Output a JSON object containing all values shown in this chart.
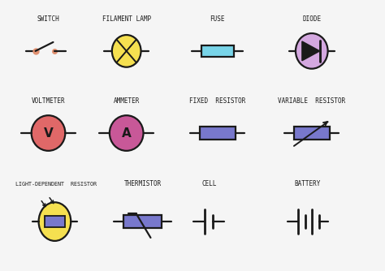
{
  "bg_color": "#f5f5f5",
  "line_color": "#1a1a1a",
  "lw": 1.6,
  "colors": {
    "yellow": "#f5e050",
    "cyan": "#78d4e8",
    "purple": "#d4a8e0",
    "red": "#e06868",
    "pink": "#c85898",
    "blue": "#7878cc",
    "orange": "#e09070"
  },
  "labels": {
    "switch": "SWITCH",
    "filament_lamp": "FILAMENT LAMP",
    "fuse": "FUSE",
    "diode": "DIODE",
    "voltmeter": "VOLTMETER",
    "ammeter": "AMMETER",
    "fixed_resistor": "FIXED  RESISTOR",
    "variable_resistor": "VARIABLE  RESISTOR",
    "ldr": "LIGHT-DEPENDENT  RESISTOR",
    "thermistor": "THERMISTOR",
    "cell": "CELL",
    "battery": "BATTERY"
  },
  "label_fontsize": 5.5,
  "symbol_fontsize": 11
}
